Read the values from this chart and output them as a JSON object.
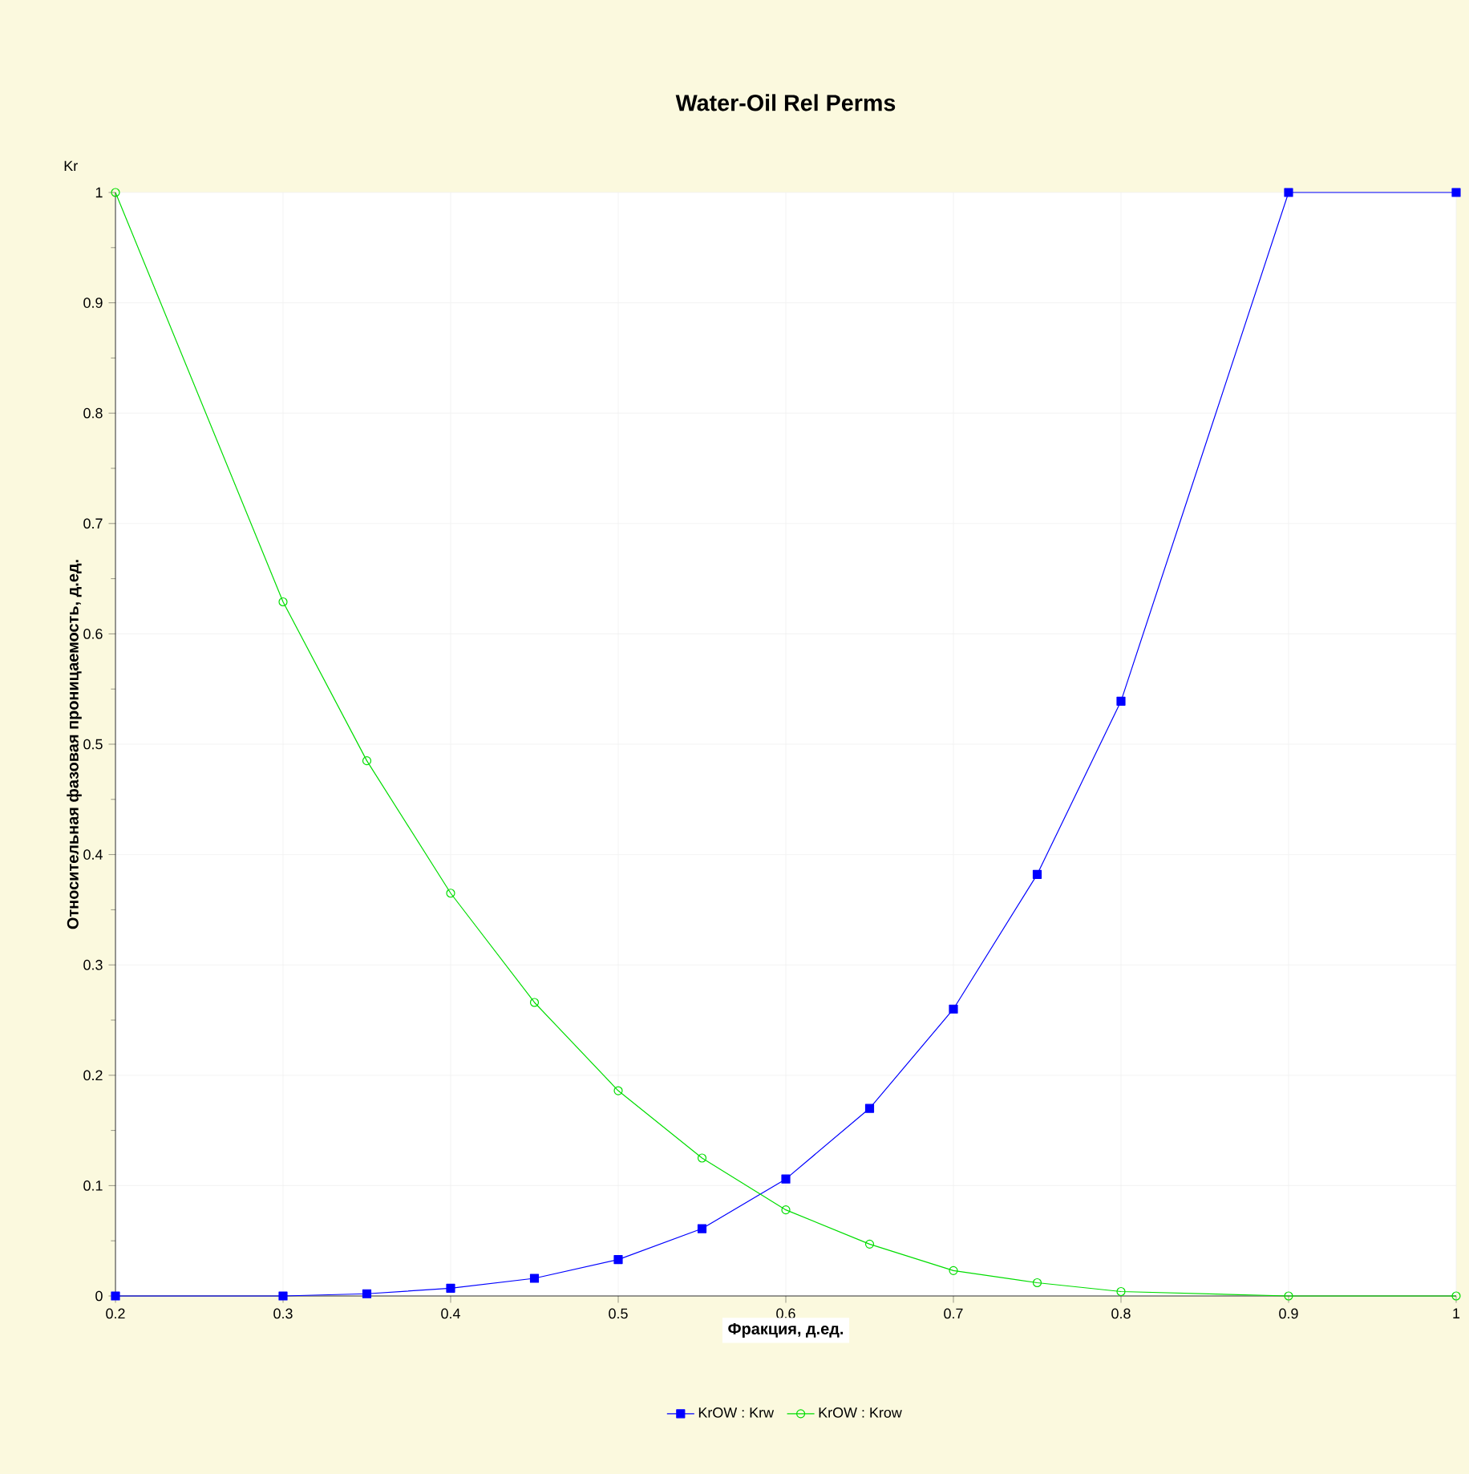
{
  "chart_data": {
    "type": "line",
    "title": "Water-Oil Rel Perms",
    "xlabel": "Фракция, д.ед.",
    "ylabel": "Относительная фазовая проницаемость, д.ед.",
    "annotations": [
      "Kr"
    ],
    "x": [
      0.2,
      0.3,
      0.35,
      0.4,
      0.45,
      0.5,
      0.55,
      0.6,
      0.65,
      0.7,
      0.75,
      0.8,
      0.9,
      1.0
    ],
    "series": [
      {
        "name": "KrOW : Krw",
        "color": "#0000ff",
        "marker": "square",
        "values": [
          0,
          0,
          0.002,
          0.007,
          0.016,
          0.033,
          0.061,
          0.106,
          0.17,
          0.26,
          0.382,
          0.539,
          1,
          1
        ]
      },
      {
        "name": "KrOW : Krow",
        "color": "#00dd00",
        "marker": "circle",
        "values": [
          1,
          0.629,
          0.485,
          0.365,
          0.266,
          0.186,
          0.125,
          0.078,
          0.047,
          0.023,
          0.012,
          0.004,
          0,
          0
        ]
      }
    ],
    "xlim": [
      0.2,
      1
    ],
    "ylim": [
      0,
      1
    ],
    "xticks": [
      0.2,
      0.3,
      0.4,
      0.5,
      0.6,
      0.7,
      0.8,
      0.9,
      1
    ],
    "yticks": [
      0,
      0.1,
      0.2,
      0.3,
      0.4,
      0.5,
      0.6,
      0.7,
      0.8,
      0.9,
      1
    ],
    "grid": true,
    "legend": "bottom",
    "line_style": "solid"
  }
}
